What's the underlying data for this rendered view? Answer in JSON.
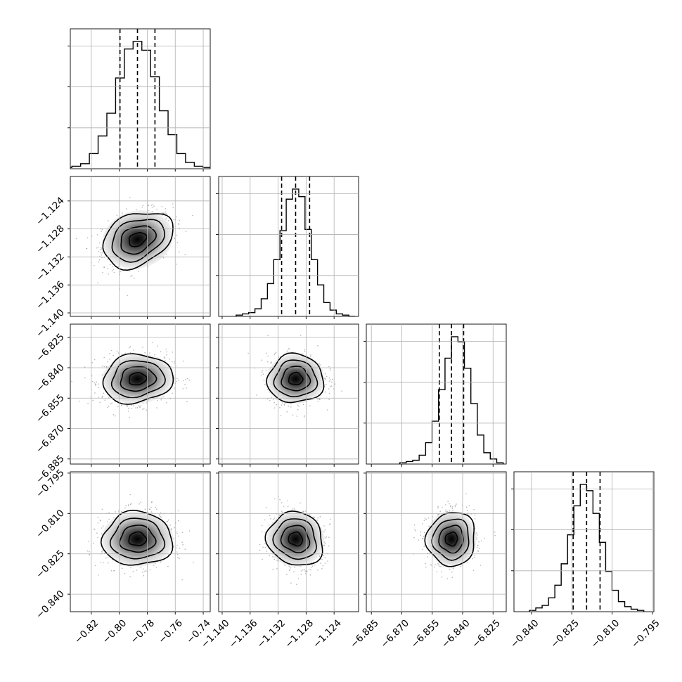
{
  "chart_data": {
    "type": "corner",
    "n_params": 4,
    "grid": true,
    "params": [
      {
        "range": [
          -0.835,
          -0.735
        ],
        "median": -0.787,
        "q16": -0.7995,
        "q84": -0.7745,
        "sigma": 0.0125,
        "ticks": [
          -0.82,
          -0.8,
          -0.78,
          -0.76,
          -0.74
        ],
        "tick_labels": [
          "−0.82",
          "−0.80",
          "−0.78",
          "−0.76",
          "−0.74"
        ]
      },
      {
        "range": [
          -1.1405,
          -1.1205
        ],
        "median": -1.1295,
        "q16": -1.1315,
        "q84": -1.1275,
        "sigma": 0.002,
        "ticks": [
          -1.14,
          -1.136,
          -1.132,
          -1.128,
          -1.124
        ],
        "tick_labels": [
          "−1.140",
          "−1.136",
          "−1.132",
          "−1.128",
          "−1.124"
        ]
      },
      {
        "range": [
          -6.8875,
          -6.8185
        ],
        "median": -6.8455,
        "q16": -6.8515,
        "q84": -6.8395,
        "sigma": 0.006,
        "ticks": [
          -6.885,
          -6.87,
          -6.855,
          -6.84,
          -6.825
        ],
        "tick_labels": [
          "−6.885",
          "−6.870",
          "−6.855",
          "−6.840",
          "−6.825"
        ]
      },
      {
        "range": [
          -0.8465,
          -0.7945
        ],
        "median": -0.8195,
        "q16": -0.8245,
        "q84": -0.8145,
        "sigma": 0.005,
        "ticks": [
          -0.84,
          -0.825,
          -0.81,
          -0.795
        ],
        "tick_labels": [
          "−0.840",
          "−0.825",
          "−0.810",
          "−0.795"
        ]
      }
    ],
    "histograms": [
      {
        "param": 0,
        "counts": [
          1,
          2,
          4,
          12,
          26,
          44,
          72,
          95,
          101,
          94,
          73,
          46,
          27,
          12,
          5,
          2,
          1
        ]
      },
      {
        "param": 1,
        "counts": [
          1,
          2,
          3,
          6,
          14,
          26,
          45,
          68,
          93,
          101,
          95,
          69,
          45,
          25,
          11,
          5,
          2,
          1,
          0
        ]
      },
      {
        "param": 2,
        "counts": [
          1,
          2,
          3,
          7,
          17,
          34,
          59,
          84,
          101,
          97,
          76,
          48,
          23,
          9,
          4,
          1
        ]
      },
      {
        "param": 3,
        "counts": [
          1,
          3,
          5,
          11,
          21,
          38,
          61,
          84,
          101,
          96,
          78,
          55,
          32,
          17,
          8,
          4,
          2,
          1
        ]
      }
    ],
    "correlations": [
      {
        "x": 0,
        "y": 1,
        "rho": 0.3
      },
      {
        "x": 0,
        "y": 2,
        "rho": 0.1
      },
      {
        "x": 1,
        "y": 2,
        "rho": 0.0
      },
      {
        "x": 0,
        "y": 3,
        "rho": 0.0
      },
      {
        "x": 1,
        "y": 3,
        "rho": -0.1
      },
      {
        "x": 2,
        "y": 3,
        "rho": 0.05
      }
    ],
    "contour_levels_sigma": [
      0.5,
      1.0,
      1.5,
      2.0
    ]
  }
}
